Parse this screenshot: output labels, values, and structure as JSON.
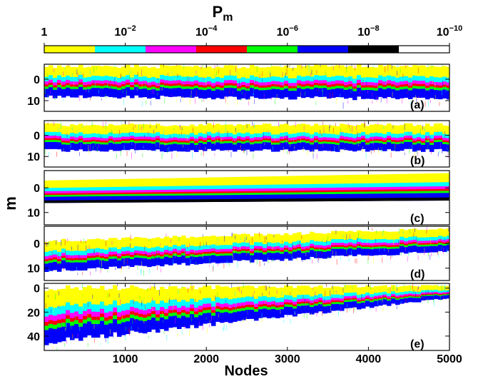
{
  "chart_data": {
    "type": "heatmap",
    "colorbar": {
      "label_main": "P",
      "label_sub": "m",
      "ticks": [
        {
          "base": "1",
          "exp": ""
        },
        {
          "base": "10",
          "exp": "−2"
        },
        {
          "base": "10",
          "exp": "−4"
        },
        {
          "base": "10",
          "exp": "−6"
        },
        {
          "base": "10",
          "exp": "−8"
        },
        {
          "base": "10",
          "exp": "−10"
        }
      ],
      "colors": [
        "#ffff00",
        "#00ffff",
        "#ff00ff",
        "#ff0000",
        "#00ff00",
        "#0000ff",
        "#000000",
        "#ffffff"
      ]
    },
    "xlabel": "Nodes",
    "ylabel": "m",
    "xlim": [
      0,
      5000
    ],
    "xticks": [
      "1000",
      "2000",
      "3000",
      "4000",
      "5000"
    ],
    "xtick_values": [
      1000,
      2000,
      3000,
      4000,
      5000
    ],
    "panels": [
      {
        "label": "(a)",
        "ylim": [
          -7,
          15
        ],
        "yticks": [
          "0",
          "10"
        ],
        "ytick_values": [
          0,
          10
        ],
        "bands": [
          {
            "x": [
              0,
              5000
            ],
            "lo": [
              -6,
              -6
            ],
            "hi": [
              8,
              9
            ],
            "scatter": true
          }
        ]
      },
      {
        "label": "(b)",
        "ylim": [
          -7,
          15
        ],
        "yticks": [
          "0",
          "10"
        ],
        "ytick_values": [
          0,
          10
        ],
        "bands": [
          {
            "x": [
              0,
              5000
            ],
            "lo": [
              -5,
              -5
            ],
            "hi": [
              7,
              7
            ],
            "scatter": true
          }
        ]
      },
      {
        "label": "(c)",
        "ylim": [
          -7,
          15
        ],
        "yticks": [
          "0",
          "10"
        ],
        "ytick_values": [
          0,
          10
        ],
        "bands": [
          {
            "x": [
              0,
              5000
            ],
            "lo": [
              -3,
              -6
            ],
            "hi": [
              6,
              5
            ],
            "scatter": false
          }
        ]
      },
      {
        "label": "(d)",
        "ylim": [
          -7,
          15
        ],
        "yticks": [
          "0",
          "10"
        ],
        "ytick_values": [
          0,
          10
        ],
        "bands": [
          {
            "x": [
              0,
              5000
            ],
            "lo": [
              -1,
              -6
            ],
            "hi": [
              11,
              3
            ],
            "scatter": true
          }
        ]
      },
      {
        "label": "(e)",
        "ylim": [
          -4,
          52
        ],
        "yticks": [
          "0",
          "20",
          "40"
        ],
        "ytick_values": [
          0,
          20,
          40
        ],
        "bands": [
          {
            "x": [
              0,
              5000
            ],
            "lo": [
              0,
              -2
            ],
            "hi": [
              45,
              8
            ],
            "scatter": true
          }
        ]
      }
    ]
  }
}
